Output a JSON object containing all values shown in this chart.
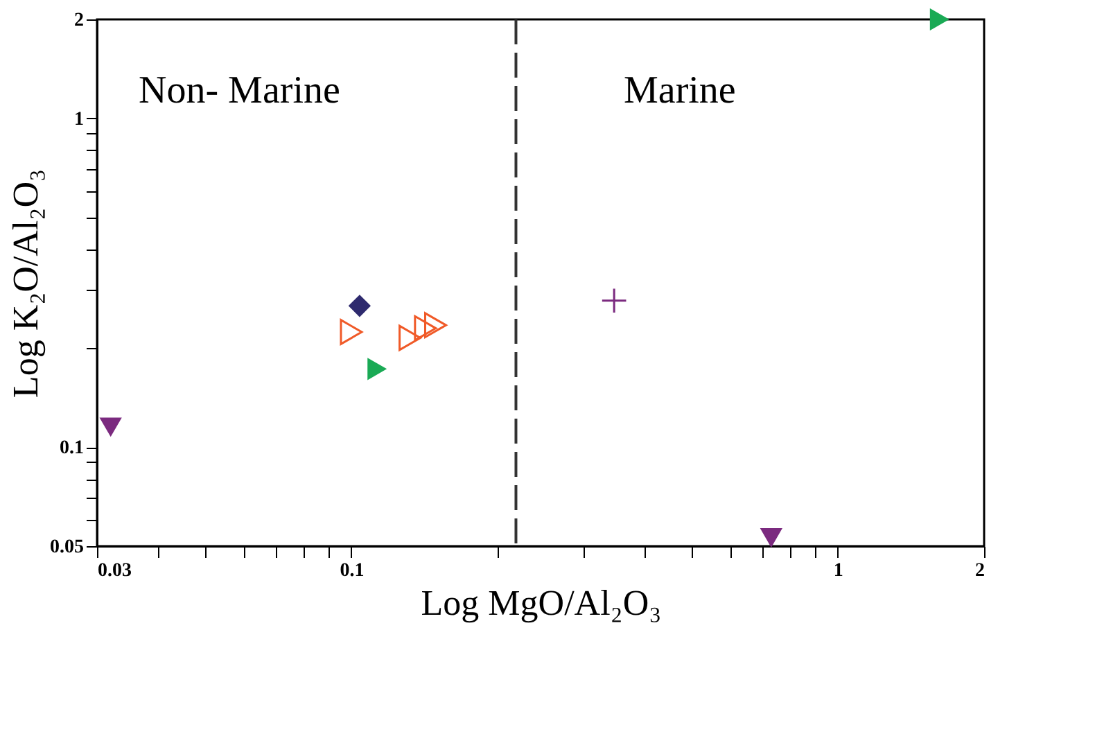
{
  "chart_data": {
    "type": "scatter",
    "xlabel": "Log MgO/Al₂O₃",
    "ylabel": "Log K₂O/Al₂O₃",
    "log": "xy",
    "xlim": [
      0.03,
      2
    ],
    "ylim": [
      0.05,
      2
    ],
    "xticks": [
      0.03,
      {
        "value": 0.04,
        "label": null
      },
      {
        "value": 0.05,
        "label": null
      },
      {
        "value": 0.06,
        "label": null
      },
      {
        "value": 0.07,
        "label": null
      },
      {
        "value": 0.08,
        "label": null
      },
      {
        "value": 0.09,
        "label": null
      },
      0.1,
      {
        "value": 0.2,
        "label": null
      },
      {
        "value": 0.3,
        "label": null
      },
      {
        "value": 0.4,
        "label": null
      },
      {
        "value": 0.5,
        "label": null
      },
      {
        "value": 0.6,
        "label": null
      },
      {
        "value": 0.7,
        "label": null
      },
      {
        "value": 0.8,
        "label": null
      },
      {
        "value": 0.9,
        "label": null
      },
      1,
      2
    ],
    "yticks": [
      0.05,
      {
        "value": 0.06,
        "label": null
      },
      {
        "value": 0.07,
        "label": null
      },
      {
        "value": 0.08,
        "label": null
      },
      {
        "value": 0.09,
        "label": null
      },
      0.1,
      {
        "value": 0.2,
        "label": null
      },
      {
        "value": 0.3,
        "label": null
      },
      {
        "value": 0.4,
        "label": null
      },
      {
        "value": 0.5,
        "label": null
      },
      {
        "value": 0.6,
        "label": null
      },
      {
        "value": 0.7,
        "label": null
      },
      {
        "value": 0.8,
        "label": null
      },
      {
        "value": 0.9,
        "label": null
      },
      1,
      2
    ],
    "grid": false,
    "series": [
      {
        "color": "#7b2a7f",
        "marker": "triangle-down",
        "x": [
          0.032,
          0.73
        ],
        "values": [
          0.115,
          0.053
        ]
      },
      {
        "color": "#2e2a6e",
        "marker": "diamond",
        "x": [
          0.104
        ],
        "values": [
          0.269
        ]
      },
      {
        "color": "#f05a28",
        "marker": "triangle-right-open",
        "x": [
          0.1,
          0.132,
          0.142,
          0.149
        ],
        "values": [
          0.224,
          0.215,
          0.23,
          0.235
        ]
      },
      {
        "color": "#1aaa55",
        "marker": "triangle-right",
        "x": [
          0.113,
          1.62
        ],
        "values": [
          0.173,
          2.0
        ]
      },
      {
        "color": "#7b2a7f",
        "marker": "cross",
        "x": [
          0.347
        ],
        "values": [
          0.279
        ]
      }
    ],
    "ref_lines": [
      {
        "axis": "x",
        "value": 0.218,
        "color": "#333333",
        "line_style": "dashed"
      }
    ],
    "annotations": [
      "Non- Marine",
      "Marine"
    ]
  }
}
